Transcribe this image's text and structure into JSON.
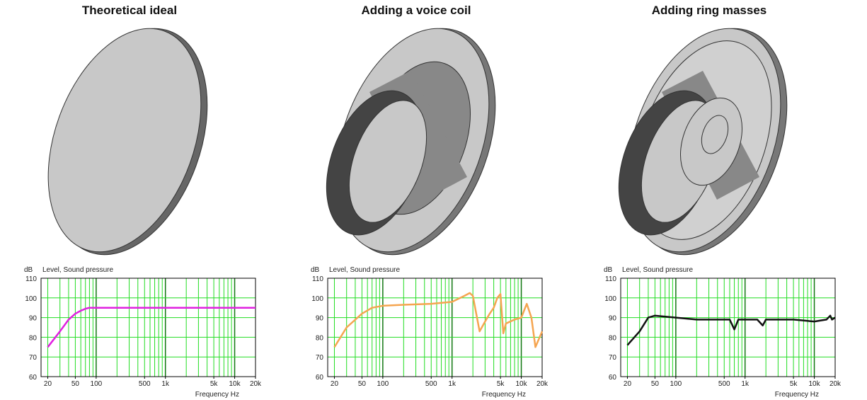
{
  "chart_data": [
    {
      "type": "line",
      "title": "Theoretical ideal",
      "y_unit_label": "dB",
      "y_label": "Level, Sound pressure",
      "x_label": "Frequency  Hz",
      "xscale": "log",
      "grid": true,
      "grid_color": "#22dd22",
      "color": "#e020e0",
      "x": [
        20,
        30,
        40,
        50,
        60,
        70,
        80,
        100,
        200,
        1000,
        10000,
        20000
      ],
      "values": [
        75,
        83,
        89,
        92,
        93.5,
        94.5,
        95,
        95,
        95,
        95,
        95,
        95
      ],
      "xlim": [
        16,
        20000
      ],
      "ylim": [
        60,
        110
      ],
      "xticks": [
        20,
        50,
        100,
        500,
        {
          "value": 1000,
          "label": "1k"
        },
        {
          "value": 5000,
          "label": "5k"
        },
        {
          "value": 10000,
          "label": "10k"
        },
        {
          "value": 20000,
          "label": "20k"
        }
      ],
      "yticks": [
        60,
        70,
        80,
        90,
        100,
        110
      ],
      "xgrid": [
        20,
        30,
        40,
        50,
        60,
        70,
        80,
        90,
        100,
        200,
        300,
        400,
        500,
        600,
        700,
        800,
        900,
        1000,
        2000,
        3000,
        4000,
        5000,
        6000,
        7000,
        8000,
        9000,
        10000
      ]
    },
    {
      "type": "line",
      "title": "Adding a voice coil",
      "y_unit_label": "dB",
      "y_label": "Level, Sound pressure",
      "x_label": "Frequency  Hz",
      "xscale": "log",
      "grid": true,
      "grid_color": "#22dd22",
      "color": "#f5a550",
      "x": [
        20,
        30,
        50,
        70,
        100,
        200,
        500,
        1000,
        1500,
        1800,
        2000,
        2500,
        3000,
        3500,
        4000,
        4500,
        5000,
        5500,
        6000,
        8000,
        10000,
        12000,
        14000,
        16000,
        20000
      ],
      "values": [
        75,
        85,
        92,
        95,
        96,
        96.5,
        97,
        98,
        101,
        102.5,
        101,
        83,
        88,
        92,
        95,
        100,
        102,
        82,
        87,
        89,
        90,
        97,
        90,
        75,
        83
      ],
      "xlim": [
        16,
        20000
      ],
      "ylim": [
        60,
        110
      ],
      "xticks": [
        20,
        50,
        100,
        500,
        {
          "value": 1000,
          "label": "1k"
        },
        {
          "value": 5000,
          "label": "5k"
        },
        {
          "value": 10000,
          "label": "10k"
        },
        {
          "value": 20000,
          "label": "20k"
        }
      ],
      "yticks": [
        60,
        70,
        80,
        90,
        100,
        110
      ],
      "xgrid": [
        20,
        30,
        40,
        50,
        60,
        70,
        80,
        90,
        100,
        200,
        300,
        400,
        500,
        600,
        700,
        800,
        900,
        1000,
        2000,
        3000,
        4000,
        5000,
        6000,
        7000,
        8000,
        9000,
        10000
      ]
    },
    {
      "type": "line",
      "title": "Adding ring masses",
      "y_unit_label": "dB",
      "y_label": "Level, Sound pressure",
      "x_label": "Frequency  Hz",
      "xscale": "log",
      "grid": true,
      "grid_color": "#22dd22",
      "color": "#111111",
      "x": [
        20,
        30,
        40,
        50,
        100,
        200,
        600,
        700,
        800,
        1500,
        1800,
        2000,
        5000,
        10000,
        15000,
        17000,
        18000,
        20000
      ],
      "values": [
        76,
        83,
        90,
        91,
        90,
        89,
        89,
        84,
        89,
        89,
        86,
        89,
        89,
        88,
        89,
        91,
        89,
        90
      ],
      "xlim": [
        16,
        20000
      ],
      "ylim": [
        60,
        110
      ],
      "xticks": [
        20,
        50,
        100,
        500,
        {
          "value": 1000,
          "label": "1k"
        },
        {
          "value": 5000,
          "label": "5k"
        },
        {
          "value": 10000,
          "label": "10k"
        },
        {
          "value": 20000,
          "label": "20k"
        }
      ],
      "yticks": [
        60,
        70,
        80,
        90,
        100,
        110
      ],
      "xgrid": [
        20,
        30,
        40,
        50,
        60,
        70,
        80,
        90,
        100,
        200,
        300,
        400,
        500,
        600,
        700,
        800,
        900,
        1000,
        2000,
        3000,
        4000,
        5000,
        6000,
        7000,
        8000,
        9000,
        10000
      ]
    }
  ]
}
